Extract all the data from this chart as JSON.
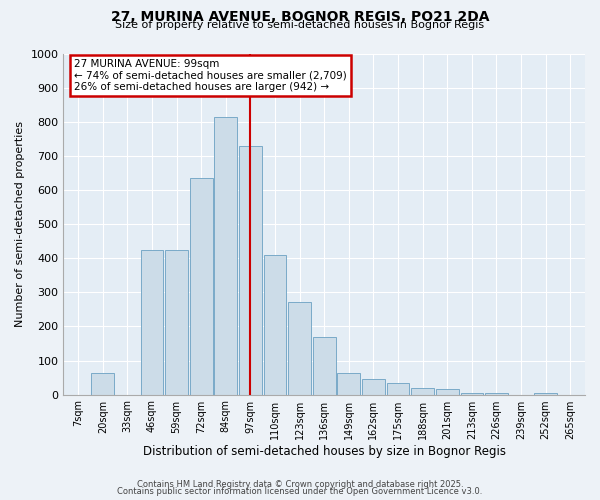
{
  "title": "27, MURINA AVENUE, BOGNOR REGIS, PO21 2DA",
  "subtitle": "Size of property relative to semi-detached houses in Bognor Regis",
  "xlabel": "Distribution of semi-detached houses by size in Bognor Regis",
  "ylabel": "Number of semi-detached properties",
  "bin_labels": [
    "7sqm",
    "20sqm",
    "33sqm",
    "46sqm",
    "59sqm",
    "72sqm",
    "84sqm",
    "97sqm",
    "110sqm",
    "123sqm",
    "136sqm",
    "149sqm",
    "162sqm",
    "175sqm",
    "188sqm",
    "201sqm",
    "213sqm",
    "226sqm",
    "239sqm",
    "252sqm",
    "265sqm"
  ],
  "bar_heights": [
    0,
    62,
    0,
    425,
    425,
    637,
    815,
    730,
    410,
    272,
    170,
    62,
    45,
    35,
    18,
    15,
    5,
    5,
    0,
    5,
    0
  ],
  "bar_color": "#ccdce8",
  "bar_edge_color": "#7aaac8",
  "vline_x": 7,
  "vline_color": "#cc0000",
  "annotation_title": "27 MURINA AVENUE: 99sqm",
  "annotation_line2": "← 74% of semi-detached houses are smaller (2,709)",
  "annotation_line3": "26% of semi-detached houses are larger (942) →",
  "annotation_box_color": "#cc0000",
  "ylim": [
    0,
    1000
  ],
  "yticks": [
    0,
    100,
    200,
    300,
    400,
    500,
    600,
    700,
    800,
    900,
    1000
  ],
  "footer1": "Contains HM Land Registry data © Crown copyright and database right 2025.",
  "footer2": "Contains public sector information licensed under the Open Government Licence v3.0.",
  "bg_color": "#edf2f7",
  "plot_bg_color": "#e4edf5"
}
